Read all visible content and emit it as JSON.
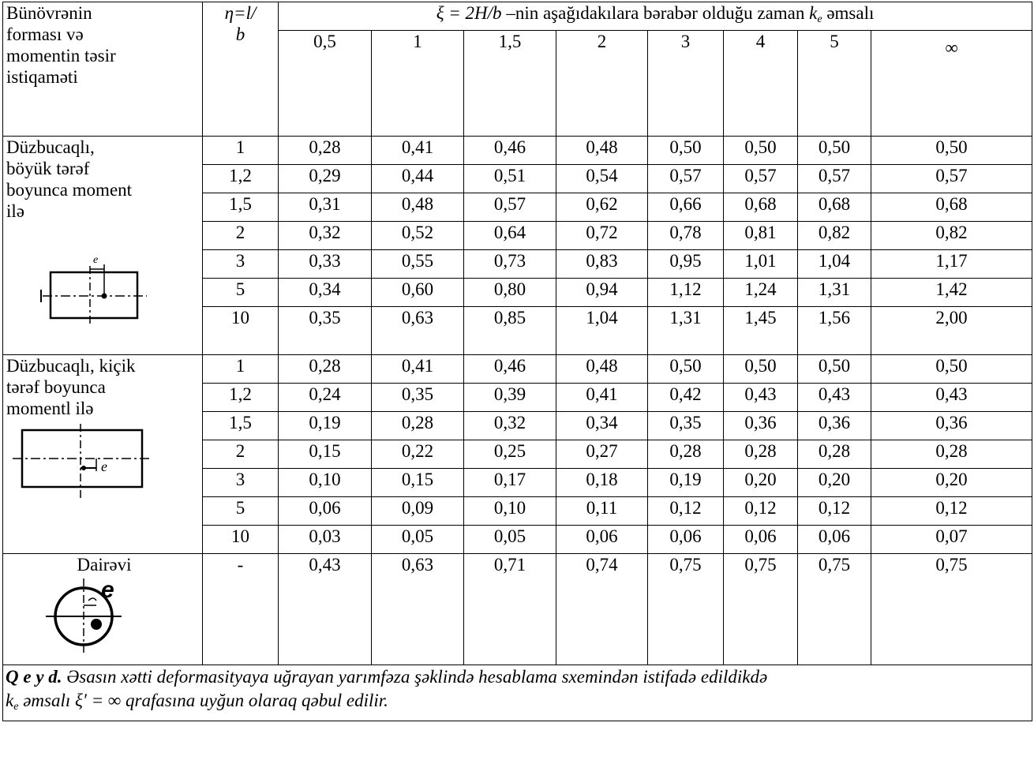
{
  "header": {
    "col1_lines": [
      "Bünövrənin",
      "forması və",
      "momentin təsir",
      "istiqaməti"
    ],
    "eta_top": "η=l/",
    "eta_bottom": "b",
    "span_title_a": "ξ = 2H/b",
    "span_title_b": " –nin aşağıdakılara bərabər olduğu zaman ",
    "span_title_k": "k",
    "span_title_sub": "e",
    "span_title_c": " əmsalı",
    "xi_values": [
      "0,5",
      "1",
      "1,5",
      "2",
      "3",
      "4",
      "5",
      "∞"
    ]
  },
  "groups": [
    {
      "label_lines": [
        "Düzbucaqlı,",
        "böyük tərəf",
        "boyunca moment",
        "ilə"
      ],
      "figure_label": "e",
      "figure_icon": "rectangle-long-side-moment-icon",
      "rows": [
        {
          "eta": "1",
          "values": [
            "0,28",
            "0,41",
            "0,46",
            "0,48",
            "0,50",
            "0,50",
            "0,50",
            "0,50"
          ]
        },
        {
          "eta": "1,2",
          "values": [
            "0,29",
            "0,44",
            "0,51",
            "0,54",
            "0,57",
            "0,57",
            "0,57",
            "0,57"
          ]
        },
        {
          "eta": "1,5",
          "values": [
            "0,31",
            "0,48",
            "0,57",
            "0,62",
            "0,66",
            "0,68",
            "0,68",
            "0,68"
          ]
        },
        {
          "eta": "2",
          "values": [
            "0,32",
            "0,52",
            "0,64",
            "0,72",
            "0,78",
            "0,81",
            "0,82",
            "0,82"
          ]
        },
        {
          "eta": "3",
          "values": [
            "0,33",
            "0,55",
            "0,73",
            "0,83",
            "0,95",
            "1,01",
            "1,04",
            "1,17"
          ]
        },
        {
          "eta": "5",
          "values": [
            "0,34",
            "0,60",
            "0,80",
            "0,94",
            "1,12",
            "1,24",
            "1,31",
            "1,42"
          ]
        },
        {
          "eta": "10",
          "values": [
            "0,35",
            "0,63",
            "0,85",
            "1,04",
            "1,31",
            "1,45",
            "1,56",
            "2,00"
          ]
        }
      ]
    },
    {
      "label_lines": [
        "Düzbucaqlı, kiçik",
        "tərəf boyunca",
        "momentl ilə"
      ],
      "figure_label": "e",
      "figure_icon": "rectangle-short-side-moment-icon",
      "rows": [
        {
          "eta": "1",
          "values": [
            "0,28",
            "0,41",
            "0,46",
            "0,48",
            "0,50",
            "0,50",
            "0,50",
            "0,50"
          ]
        },
        {
          "eta": "1,2",
          "values": [
            "0,24",
            "0,35",
            "0,39",
            "0,41",
            "0,42",
            "0,43",
            "0,43",
            "0,43"
          ]
        },
        {
          "eta": "1,5",
          "values": [
            "0,19",
            "0,28",
            "0,32",
            "0,34",
            "0,35",
            "0,36",
            "0,36",
            "0,36"
          ]
        },
        {
          "eta": "2",
          "values": [
            "0,15",
            "0,22",
            "0,25",
            "0,27",
            "0,28",
            "0,28",
            "0,28",
            "0,28"
          ]
        },
        {
          "eta": "3",
          "values": [
            "0,10",
            "0,15",
            "0,17",
            "0,18",
            "0,19",
            "0,20",
            "0,20",
            "0,20"
          ]
        },
        {
          "eta": "5",
          "values": [
            "0,06",
            "0,09",
            "0,10",
            "0,11",
            "0,12",
            "0,12",
            "0,12",
            "0,12"
          ]
        },
        {
          "eta": "10",
          "values": [
            "0,03",
            "0,05",
            "0,05",
            "0,06",
            "0,06",
            "0,06",
            "0,06",
            "0,07"
          ]
        }
      ]
    },
    {
      "label_lines": [
        "Dairəvi"
      ],
      "figure_label": "e",
      "figure_icon": "circle-moment-icon",
      "rows": [
        {
          "eta": "-",
          "values": [
            "0,43",
            "0,63",
            "0,71",
            "0,74",
            "0,75",
            "0,75",
            "0,75",
            "0,75"
          ]
        }
      ]
    }
  ],
  "note": {
    "lead": "Q e y d.",
    "text1": " Əsasın xətti deformasityaya uğrayan yarımfəza şəklində hesablama sxemindən istifadə edildikdə",
    "k": "k",
    "k_sub": "e",
    "text2": " əmsalı  ξ′ = ∞ qrafasına uyğun olaraq qəbul edilir."
  }
}
